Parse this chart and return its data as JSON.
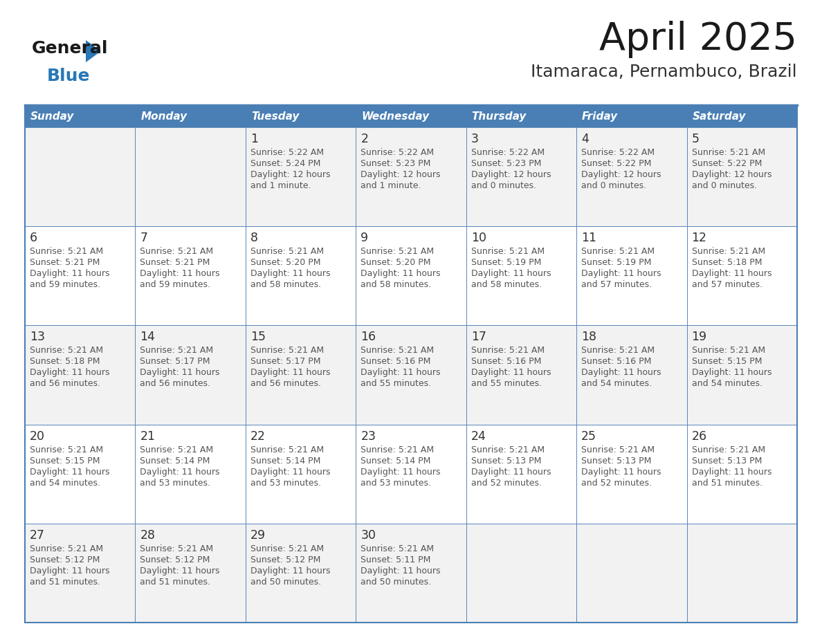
{
  "title": "April 2025",
  "subtitle": "Itamaraca, Pernambuco, Brazil",
  "days_of_week": [
    "Sunday",
    "Monday",
    "Tuesday",
    "Wednesday",
    "Thursday",
    "Friday",
    "Saturday"
  ],
  "header_bg": "#4a7fb5",
  "header_text": "#ffffff",
  "row_bg_light": "#f2f2f2",
  "row_bg_white": "#ffffff",
  "border_color": "#4a7fb5",
  "day_number_color": "#333333",
  "text_color": "#555555",
  "title_color": "#1a1a1a",
  "subtitle_color": "#333333",
  "logo_general_color": "#1a1a1a",
  "logo_blue_color": "#2878b8",
  "fig_width": 11.88,
  "fig_height": 9.18,
  "dpi": 100,
  "weeks": [
    [
      {
        "day": "",
        "sunrise": "",
        "sunset": "",
        "daylight": ""
      },
      {
        "day": "",
        "sunrise": "",
        "sunset": "",
        "daylight": ""
      },
      {
        "day": "1",
        "sunrise": "Sunrise: 5:22 AM",
        "sunset": "Sunset: 5:24 PM",
        "daylight": "Daylight: 12 hours\nand 1 minute."
      },
      {
        "day": "2",
        "sunrise": "Sunrise: 5:22 AM",
        "sunset": "Sunset: 5:23 PM",
        "daylight": "Daylight: 12 hours\nand 1 minute."
      },
      {
        "day": "3",
        "sunrise": "Sunrise: 5:22 AM",
        "sunset": "Sunset: 5:23 PM",
        "daylight": "Daylight: 12 hours\nand 0 minutes."
      },
      {
        "day": "4",
        "sunrise": "Sunrise: 5:22 AM",
        "sunset": "Sunset: 5:22 PM",
        "daylight": "Daylight: 12 hours\nand 0 minutes."
      },
      {
        "day": "5",
        "sunrise": "Sunrise: 5:21 AM",
        "sunset": "Sunset: 5:22 PM",
        "daylight": "Daylight: 12 hours\nand 0 minutes."
      }
    ],
    [
      {
        "day": "6",
        "sunrise": "Sunrise: 5:21 AM",
        "sunset": "Sunset: 5:21 PM",
        "daylight": "Daylight: 11 hours\nand 59 minutes."
      },
      {
        "day": "7",
        "sunrise": "Sunrise: 5:21 AM",
        "sunset": "Sunset: 5:21 PM",
        "daylight": "Daylight: 11 hours\nand 59 minutes."
      },
      {
        "day": "8",
        "sunrise": "Sunrise: 5:21 AM",
        "sunset": "Sunset: 5:20 PM",
        "daylight": "Daylight: 11 hours\nand 58 minutes."
      },
      {
        "day": "9",
        "sunrise": "Sunrise: 5:21 AM",
        "sunset": "Sunset: 5:20 PM",
        "daylight": "Daylight: 11 hours\nand 58 minutes."
      },
      {
        "day": "10",
        "sunrise": "Sunrise: 5:21 AM",
        "sunset": "Sunset: 5:19 PM",
        "daylight": "Daylight: 11 hours\nand 58 minutes."
      },
      {
        "day": "11",
        "sunrise": "Sunrise: 5:21 AM",
        "sunset": "Sunset: 5:19 PM",
        "daylight": "Daylight: 11 hours\nand 57 minutes."
      },
      {
        "day": "12",
        "sunrise": "Sunrise: 5:21 AM",
        "sunset": "Sunset: 5:18 PM",
        "daylight": "Daylight: 11 hours\nand 57 minutes."
      }
    ],
    [
      {
        "day": "13",
        "sunrise": "Sunrise: 5:21 AM",
        "sunset": "Sunset: 5:18 PM",
        "daylight": "Daylight: 11 hours\nand 56 minutes."
      },
      {
        "day": "14",
        "sunrise": "Sunrise: 5:21 AM",
        "sunset": "Sunset: 5:17 PM",
        "daylight": "Daylight: 11 hours\nand 56 minutes."
      },
      {
        "day": "15",
        "sunrise": "Sunrise: 5:21 AM",
        "sunset": "Sunset: 5:17 PM",
        "daylight": "Daylight: 11 hours\nand 56 minutes."
      },
      {
        "day": "16",
        "sunrise": "Sunrise: 5:21 AM",
        "sunset": "Sunset: 5:16 PM",
        "daylight": "Daylight: 11 hours\nand 55 minutes."
      },
      {
        "day": "17",
        "sunrise": "Sunrise: 5:21 AM",
        "sunset": "Sunset: 5:16 PM",
        "daylight": "Daylight: 11 hours\nand 55 minutes."
      },
      {
        "day": "18",
        "sunrise": "Sunrise: 5:21 AM",
        "sunset": "Sunset: 5:16 PM",
        "daylight": "Daylight: 11 hours\nand 54 minutes."
      },
      {
        "day": "19",
        "sunrise": "Sunrise: 5:21 AM",
        "sunset": "Sunset: 5:15 PM",
        "daylight": "Daylight: 11 hours\nand 54 minutes."
      }
    ],
    [
      {
        "day": "20",
        "sunrise": "Sunrise: 5:21 AM",
        "sunset": "Sunset: 5:15 PM",
        "daylight": "Daylight: 11 hours\nand 54 minutes."
      },
      {
        "day": "21",
        "sunrise": "Sunrise: 5:21 AM",
        "sunset": "Sunset: 5:14 PM",
        "daylight": "Daylight: 11 hours\nand 53 minutes."
      },
      {
        "day": "22",
        "sunrise": "Sunrise: 5:21 AM",
        "sunset": "Sunset: 5:14 PM",
        "daylight": "Daylight: 11 hours\nand 53 minutes."
      },
      {
        "day": "23",
        "sunrise": "Sunrise: 5:21 AM",
        "sunset": "Sunset: 5:14 PM",
        "daylight": "Daylight: 11 hours\nand 53 minutes."
      },
      {
        "day": "24",
        "sunrise": "Sunrise: 5:21 AM",
        "sunset": "Sunset: 5:13 PM",
        "daylight": "Daylight: 11 hours\nand 52 minutes."
      },
      {
        "day": "25",
        "sunrise": "Sunrise: 5:21 AM",
        "sunset": "Sunset: 5:13 PM",
        "daylight": "Daylight: 11 hours\nand 52 minutes."
      },
      {
        "day": "26",
        "sunrise": "Sunrise: 5:21 AM",
        "sunset": "Sunset: 5:13 PM",
        "daylight": "Daylight: 11 hours\nand 51 minutes."
      }
    ],
    [
      {
        "day": "27",
        "sunrise": "Sunrise: 5:21 AM",
        "sunset": "Sunset: 5:12 PM",
        "daylight": "Daylight: 11 hours\nand 51 minutes."
      },
      {
        "day": "28",
        "sunrise": "Sunrise: 5:21 AM",
        "sunset": "Sunset: 5:12 PM",
        "daylight": "Daylight: 11 hours\nand 51 minutes."
      },
      {
        "day": "29",
        "sunrise": "Sunrise: 5:21 AM",
        "sunset": "Sunset: 5:12 PM",
        "daylight": "Daylight: 11 hours\nand 50 minutes."
      },
      {
        "day": "30",
        "sunrise": "Sunrise: 5:21 AM",
        "sunset": "Sunset: 5:11 PM",
        "daylight": "Daylight: 11 hours\nand 50 minutes."
      },
      {
        "day": "",
        "sunrise": "",
        "sunset": "",
        "daylight": ""
      },
      {
        "day": "",
        "sunrise": "",
        "sunset": "",
        "daylight": ""
      },
      {
        "day": "",
        "sunrise": "",
        "sunset": "",
        "daylight": ""
      }
    ]
  ]
}
